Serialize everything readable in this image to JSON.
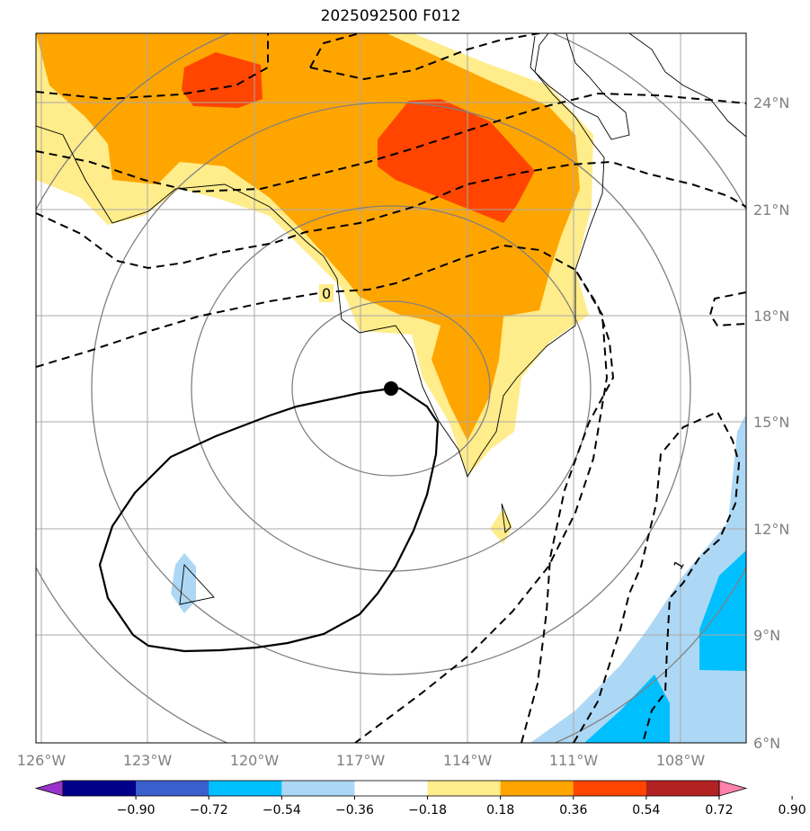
{
  "title": "2025092500 F012",
  "map": {
    "lon_labels": [
      "126°W",
      "123°W",
      "120°W",
      "117°W",
      "114°W",
      "111°W",
      "108°W"
    ],
    "lat_labels": [
      "24°N",
      "21°N",
      "18°N",
      "15°N",
      "12°N",
      "9°N",
      "6°N"
    ],
    "contour_labels": [
      "0",
      "1"
    ],
    "storm_center": {
      "lon": "116.0°W",
      "lat": "15.9°N"
    }
  },
  "colorbar": {
    "labels": [
      "−0.90",
      "−0.72",
      "−0.54",
      "−0.36",
      "−0.18",
      "0.18",
      "0.36",
      "0.54",
      "0.72",
      "0.90"
    ],
    "colors": [
      "#9932cc",
      "#00008b",
      "#3a5fcd",
      "#00bfff",
      "#add8f5",
      "#ffffff",
      "#ffec8b",
      "#ffa500",
      "#ff4500",
      "#b22222",
      "#ff82ab"
    ]
  },
  "colors": {
    "orange": "#ffa500",
    "red_orange": "#ff4500",
    "light_yellow": "#ffec8b",
    "light_blue": "#add8f5",
    "deep_sky_blue": "#00bfff",
    "grid": "#a9a9a9",
    "range_rings": "#808080"
  }
}
